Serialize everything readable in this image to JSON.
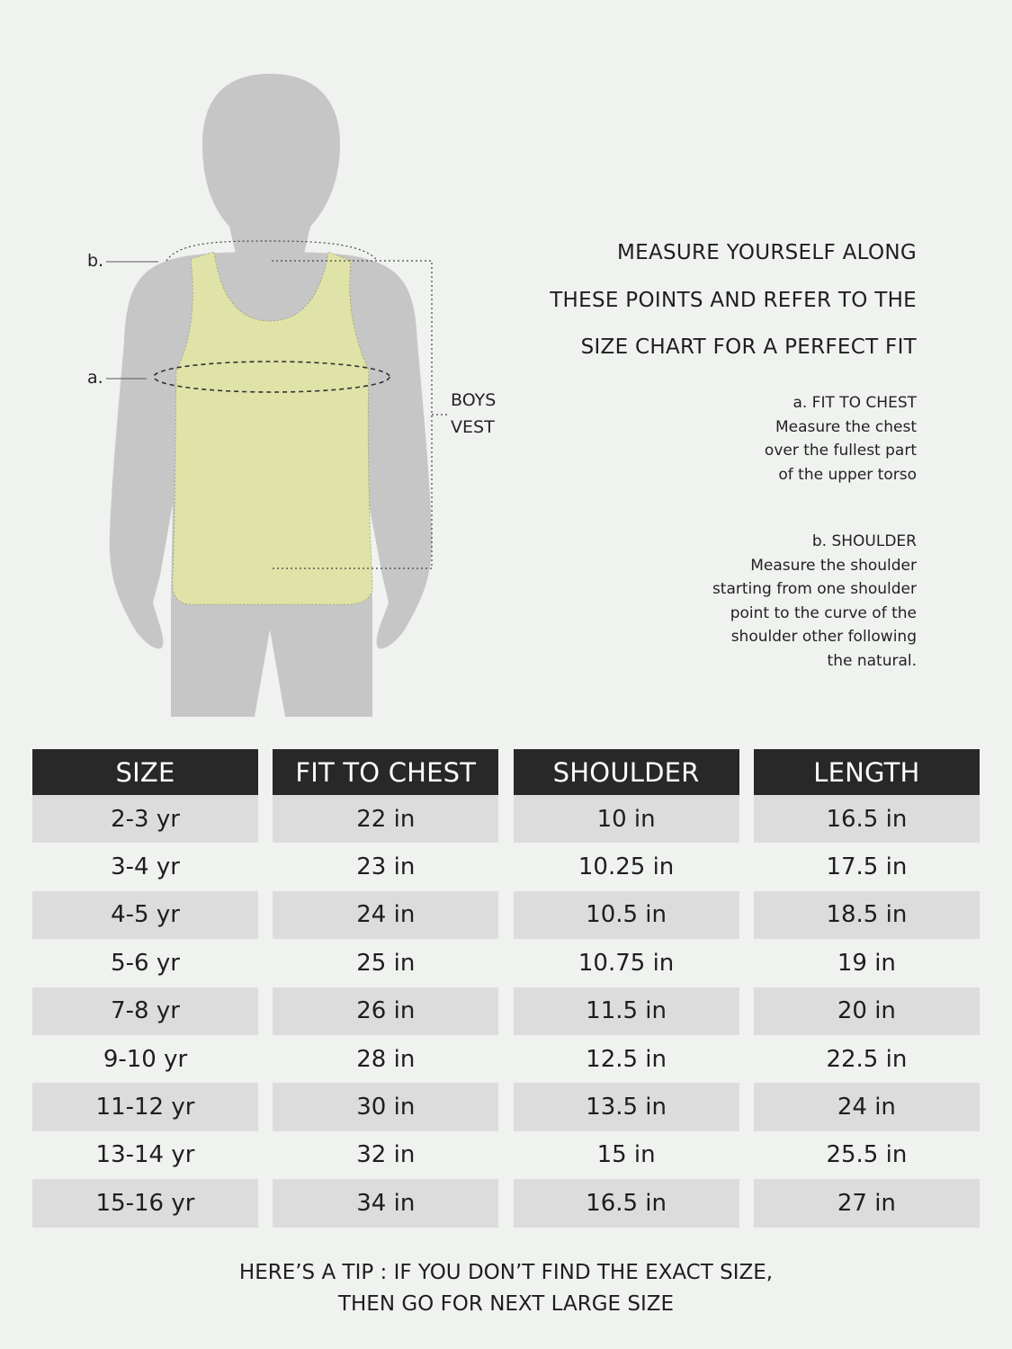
{
  "diagram": {
    "label_b": "b.",
    "label_a": "a.",
    "garment_label_line1": "BOYS",
    "garment_label_line2": "VEST",
    "colors": {
      "silhouette": "#c6c6c6",
      "vest": "#e0e3a8",
      "background": "#eff2ef"
    }
  },
  "intro": {
    "lines": [
      "MEASURE YOURSELF ALONG",
      "THESE POINTS AND REFER TO THE",
      "SIZE CHART FOR A PERFECT FIT"
    ]
  },
  "notes": [
    {
      "title": "a. FIT TO CHEST",
      "lines": [
        "Measure the chest",
        "over the fullest part",
        "of the upper torso"
      ]
    },
    {
      "title": "b. SHOULDER",
      "lines": [
        "Measure the shoulder",
        "starting from one shoulder",
        "point to the curve of the",
        "shoulder other following",
        "the natural."
      ]
    }
  ],
  "table": {
    "headers": [
      "SIZE",
      "FIT TO CHEST",
      "SHOULDER",
      "LENGTH"
    ],
    "header_color": "#282828",
    "shade_color": "#dcdcdc",
    "rows": [
      [
        "2-3 yr",
        "22 in",
        "10 in",
        "16.5 in"
      ],
      [
        "3-4 yr",
        "23 in",
        "10.25 in",
        "17.5 in"
      ],
      [
        "4-5 yr",
        "24 in",
        "10.5 in",
        "18.5 in"
      ],
      [
        "5-6 yr",
        "25 in",
        "10.75 in",
        "19 in"
      ],
      [
        "7-8 yr",
        "26 in",
        "11.5 in",
        "20 in"
      ],
      [
        "9-10 yr",
        "28 in",
        "12.5 in",
        "22.5 in"
      ],
      [
        "11-12 yr",
        "30 in",
        "13.5 in",
        "24 in"
      ],
      [
        "13-14 yr",
        "32 in",
        "15 in",
        "25.5 in"
      ],
      [
        "15-16 yr",
        "34 in",
        "16.5 in",
        "27 in"
      ]
    ]
  },
  "tip": {
    "line1": "HERE’S A TIP : IF YOU DON’T FIND THE EXACT SIZE,",
    "line2": "THEN GO FOR NEXT LARGE SIZE"
  }
}
